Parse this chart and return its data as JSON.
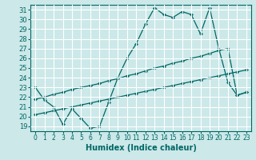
{
  "xlabel": "Humidex (Indice chaleur)",
  "ylabel": "",
  "bg_color": "#cce8e8",
  "grid_color": "#ffffff",
  "line_color": "#006666",
  "xlim": [
    -0.5,
    23.5
  ],
  "ylim": [
    18.5,
    31.5
  ],
  "xticks": [
    0,
    1,
    2,
    3,
    4,
    5,
    6,
    7,
    8,
    9,
    10,
    11,
    12,
    13,
    14,
    15,
    16,
    17,
    18,
    19,
    20,
    21,
    22,
    23
  ],
  "yticks": [
    19,
    20,
    21,
    22,
    23,
    24,
    25,
    26,
    27,
    28,
    29,
    30,
    31
  ],
  "line1_x": [
    0,
    1,
    2,
    3,
    4,
    5,
    6,
    7,
    8,
    9,
    10,
    11,
    12,
    13,
    14,
    15,
    16,
    17,
    18,
    19,
    20,
    21,
    22,
    23
  ],
  "line1_y": [
    23,
    21.7,
    21,
    19.2,
    20.8,
    19.8,
    18.8,
    19.0,
    21.5,
    24.0,
    26.0,
    27.5,
    29.5,
    31.2,
    30.5,
    30.2,
    30.8,
    30.5,
    28.5,
    31.2,
    27.0,
    23.5,
    22.2,
    22.5
  ],
  "line2_x": [
    0,
    1,
    2,
    3,
    4,
    5,
    6,
    7,
    8,
    9,
    10,
    11,
    12,
    13,
    14,
    15,
    16,
    17,
    18,
    19,
    20,
    21,
    22,
    23
  ],
  "line2_y": [
    21.8,
    22.0,
    22.3,
    22.5,
    22.8,
    23.0,
    23.2,
    23.4,
    23.7,
    23.9,
    24.2,
    24.4,
    24.7,
    25.0,
    25.2,
    25.5,
    25.7,
    26.0,
    26.2,
    26.5,
    26.8,
    27.0,
    22.2,
    22.5
  ],
  "line3_x": [
    0,
    1,
    2,
    3,
    4,
    5,
    6,
    7,
    8,
    9,
    10,
    11,
    12,
    13,
    14,
    15,
    16,
    17,
    18,
    19,
    20,
    21,
    22,
    23
  ],
  "line3_y": [
    20.2,
    20.4,
    20.6,
    20.8,
    21.0,
    21.2,
    21.4,
    21.6,
    21.8,
    22.0,
    22.2,
    22.4,
    22.6,
    22.8,
    23.0,
    23.2,
    23.4,
    23.6,
    23.8,
    24.0,
    24.2,
    24.4,
    24.6,
    24.8
  ]
}
